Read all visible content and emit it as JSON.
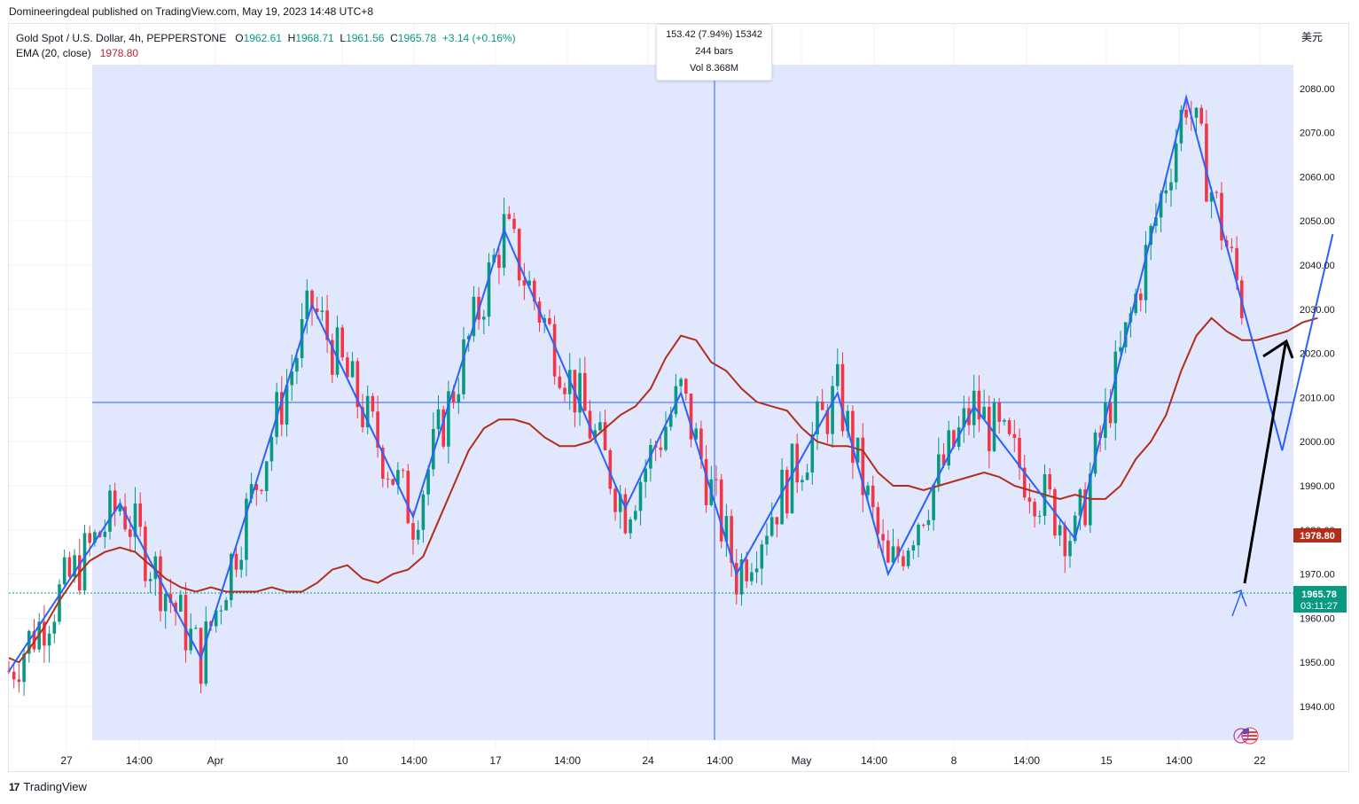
{
  "header": {
    "published": "Domineeringdeal published on TradingView.com, May 19, 2023 14:48 UTC+8"
  },
  "legend": {
    "symbol": "Gold Spot / U.S. Dollar, 4h, PEPPERSTONE",
    "o_label": "O",
    "o_value": "1962.61",
    "h_label": "H",
    "h_value": "1968.71",
    "l_label": "L",
    "l_value": "1961.56",
    "c_label": "C",
    "c_value": "1965.78",
    "change": "+3.14 (+0.16%)",
    "ema_label": "EMA (20, close)",
    "ema_value": "1978.80"
  },
  "measure": {
    "line1": "153.42 (7.94%) 15342",
    "line2": "244 bars",
    "line3": "Vol 8.368M"
  },
  "axis": {
    "currency": "美元",
    "last_price": "1965.78",
    "countdown": "03:11:27",
    "ema_price": "1978.80"
  },
  "brand": {
    "name": "TradingView"
  },
  "colors": {
    "up": "#089981",
    "down": "#f23645",
    "ema": "#b22e1c",
    "zigzag": "#2962ff",
    "range_fill": "#e1e7fc",
    "arrow": "#000000"
  },
  "chart_data": {
    "type": "line",
    "title": "Gold Spot / U.S. Dollar, 4h, PEPPERSTONE",
    "xlabel": "",
    "ylabel": "",
    "ylim": [
      1932,
      2094
    ],
    "grid": true,
    "y_ticks": [
      1940,
      1950,
      1960,
      1970,
      1980,
      1990,
      2000,
      2010,
      2020,
      2030,
      2040,
      2050,
      2060,
      2070,
      2080
    ],
    "x_ticks": [
      "27",
      "14:00",
      "Apr",
      "10",
      "14:00",
      "17",
      "14:00",
      "24",
      "14:00",
      "May",
      "14:00",
      "8",
      "14:00",
      "15",
      "14:00",
      "22"
    ],
    "series": [
      {
        "name": "EMA (20, close)",
        "x": [
          0,
          2,
          4,
          7,
          10,
          13,
          16,
          19,
          22,
          25,
          28,
          31,
          34,
          37,
          40,
          43,
          46,
          49,
          52,
          55,
          58,
          61,
          64,
          67,
          70,
          73,
          76,
          79,
          82,
          85,
          88,
          91,
          94,
          97,
          100,
          103,
          106,
          109,
          112,
          115,
          118,
          121,
          124,
          127,
          130,
          133,
          136,
          139,
          142,
          145,
          148,
          151,
          154,
          157,
          160,
          163,
          166,
          169,
          172,
          175,
          178,
          181,
          184,
          187,
          190,
          193,
          196,
          199,
          202,
          205,
          208,
          211,
          214,
          217,
          220,
          223,
          226,
          229,
          232,
          235,
          238,
          241,
          244,
          247,
          250,
          253,
          256,
          259
        ],
        "values": [
          1951,
          1950,
          1953,
          1958,
          1964,
          1969,
          1973,
          1975,
          1976,
          1975,
          1972,
          1969,
          1967,
          1966,
          1967,
          1966,
          1966,
          1966,
          1967,
          1966,
          1966,
          1968,
          1971,
          1972,
          1969,
          1968,
          1970,
          1971,
          1974,
          1982,
          1990,
          1998,
          2003,
          2005,
          2005,
          2004,
          2001,
          1999,
          1999,
          2000,
          2003,
          2006,
          2008,
          2012,
          2019,
          2024,
          2023,
          2018,
          2016,
          2012,
          2009,
          2008,
          2007,
          2003,
          2000,
          1999,
          1999,
          1998,
          1993,
          1990,
          1990,
          1989,
          1990,
          1991,
          1992,
          1993,
          1992,
          1990,
          1989,
          1988,
          1987,
          1988,
          1987,
          1987,
          1990,
          1996,
          2000,
          2006,
          2016,
          2024,
          2028,
          2025,
          2023,
          2023,
          2024,
          2025,
          2027,
          2028
        ]
      },
      {
        "name": "ZigZag",
        "x": [
          0,
          22,
          38,
          60,
          80,
          98,
          122,
          133,
          144,
          164,
          174,
          191,
          211,
          233,
          252,
          262
        ],
        "values": [
          1948,
          1986,
          1951,
          2031,
          1983,
          2048,
          1985,
          2011,
          1970,
          2011,
          1970,
          2008,
          1978,
          2078,
          1998,
          2047
        ]
      }
    ]
  }
}
